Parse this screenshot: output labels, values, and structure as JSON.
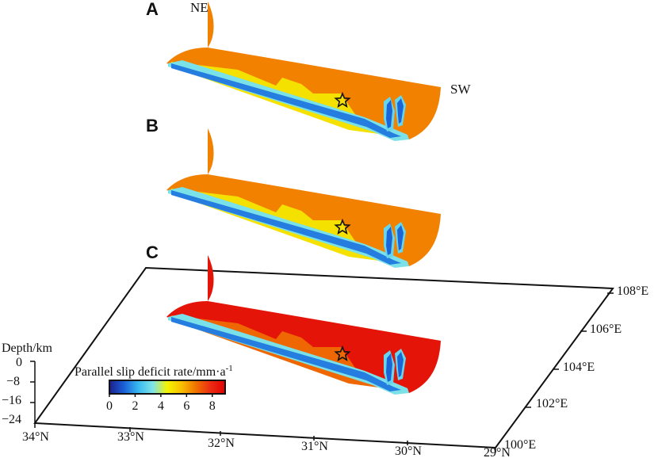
{
  "chart_data": {
    "type": "3d-fault-slip-model",
    "panels": [
      {
        "label": "A",
        "colormap_value_mm_per_a": 6.5,
        "marker": "star"
      },
      {
        "label": "B",
        "colormap_value_mm_per_a": 6.5,
        "marker": "star"
      },
      {
        "label": "C",
        "colormap_value_mm_per_a": 8.5,
        "marker": "star"
      }
    ],
    "direction_labels": [
      "NE",
      "SW"
    ],
    "latitude_ticks": [
      "34°N",
      "33°N",
      "32°N",
      "31°N",
      "30°N",
      "29°N"
    ],
    "longitude_ticks": [
      "100°E",
      "102°E",
      "104°E",
      "106°E",
      "108°E"
    ],
    "depth_axis": {
      "label": "Depth/km",
      "ticks": [
        "0",
        "−8",
        "−16",
        "−24"
      ]
    },
    "colorbar": {
      "title_main": "Parallel slip deficit rate/mm·a",
      "title_sup": "-1",
      "range": [
        0,
        9
      ],
      "ticks": [
        "0",
        "2",
        "4",
        "6",
        "8"
      ],
      "stops": [
        "#1e1e8c",
        "#1a5fd6",
        "#38b8f0",
        "#7fe4e8",
        "#f4f400",
        "#f8be00",
        "#f07000",
        "#ec2c14",
        "#e00000"
      ]
    }
  }
}
